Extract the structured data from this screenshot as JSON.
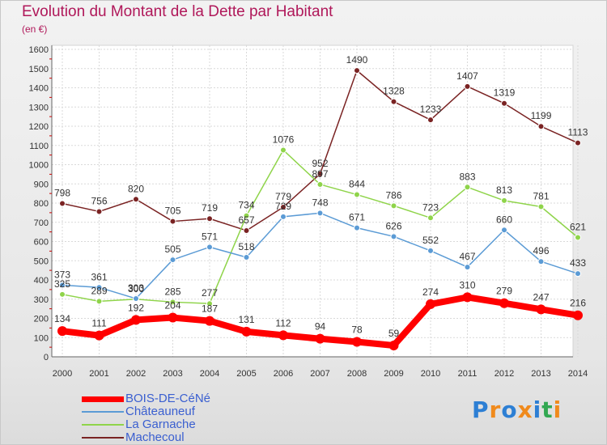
{
  "header": {
    "title": "Evolution du Montant de la Dette par Habitant",
    "unit": "(en €)"
  },
  "logo": {
    "text": "Proxiti",
    "colors": [
      "#2d7fd4",
      "#f08a1c",
      "#2d7fd4",
      "#f08a1c",
      "#2d7fd4",
      "#33a852",
      "#f08a1c"
    ]
  },
  "chart_data": {
    "type": "line",
    "title": "Evolution du Montant de la Dette par Habitant",
    "ylabel": "(en €)",
    "xlabel": "",
    "categories": [
      "2000",
      "2001",
      "2002",
      "2003",
      "2004",
      "2005",
      "2006",
      "2007",
      "2008",
      "2009",
      "2010",
      "2011",
      "2012",
      "2013",
      "2014"
    ],
    "ylim": [
      0,
      1600
    ],
    "yticks": [
      0,
      100,
      200,
      300,
      400,
      500,
      600,
      700,
      800,
      900,
      1000,
      1100,
      1200,
      1300,
      1400,
      1500,
      1600
    ],
    "grid": true,
    "legend_position": "bottom-left",
    "series": [
      {
        "name": "BOIS-DE-CéNé",
        "color": "#ff0000",
        "values": [
          134,
          111,
          192,
          204,
          187,
          131,
          112,
          94,
          78,
          59,
          274,
          310,
          279,
          247,
          216
        ]
      },
      {
        "name": "Châteauneuf",
        "color": "#5b9bd5",
        "values": [
          373,
          361,
          303,
          505,
          571,
          518,
          729,
          748,
          671,
          626,
          552,
          467,
          660,
          496,
          433
        ]
      },
      {
        "name": "La Garnache",
        "color": "#8fd44a",
        "values": [
          325,
          289,
          300,
          285,
          277,
          734,
          1076,
          897,
          844,
          786,
          723,
          883,
          813,
          781,
          621
        ]
      },
      {
        "name": "Machecoul",
        "color": "#7a2323",
        "values": [
          798,
          756,
          820,
          705,
          719,
          657,
          779,
          952,
          1490,
          1328,
          1233,
          1407,
          1319,
          1199,
          1113
        ]
      }
    ]
  }
}
